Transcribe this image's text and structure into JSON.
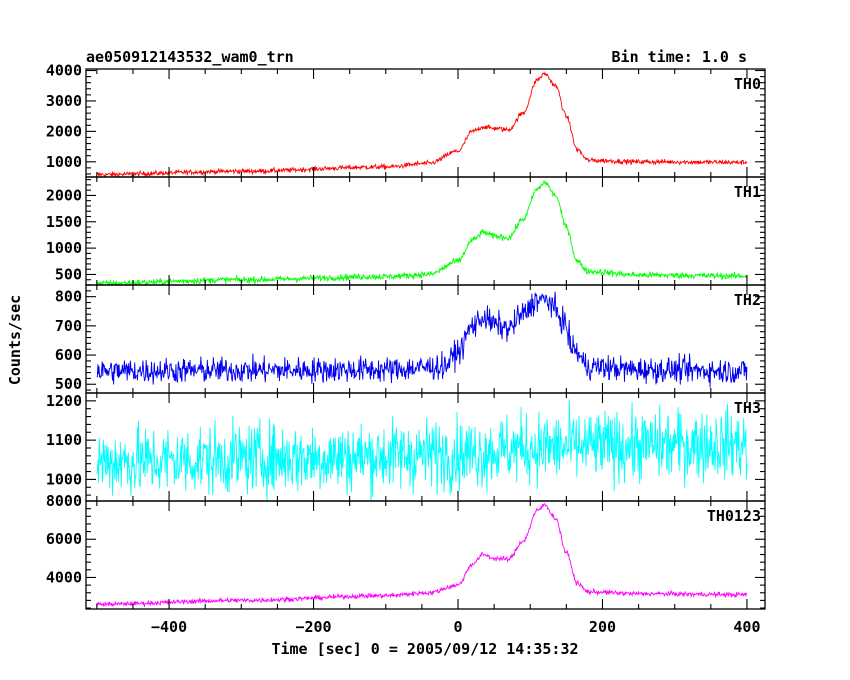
{
  "header": {
    "title": "ae050912143532_wam0_trn",
    "bin_time": "Bin time: 1.0 s"
  },
  "chart_data": {
    "type": "line",
    "xlabel": "Time [sec] 0 = 2005/09/12 14:35:32",
    "ylabel": "Counts/sec",
    "xlim": [
      -515,
      425
    ],
    "x_ticks": [
      -400,
      -200,
      0,
      200,
      400
    ],
    "x_tick_labels": [
      "−400",
      "−200",
      "0",
      "200",
      "400"
    ],
    "x_range": [
      -500,
      400
    ],
    "panels": [
      {
        "name": "TH0",
        "color": "#ff0000",
        "ylim": [
          500,
          4050
        ],
        "y_ticks": [
          1000,
          2000,
          3000,
          4000
        ],
        "noise": 40,
        "points": [
          [
            -500,
            580
          ],
          [
            -300,
            690
          ],
          [
            -100,
            830
          ],
          [
            -40,
            950
          ],
          [
            0,
            1350
          ],
          [
            20,
            2000
          ],
          [
            35,
            2150
          ],
          [
            50,
            2100
          ],
          [
            70,
            2050
          ],
          [
            90,
            2600
          ],
          [
            110,
            3700
          ],
          [
            120,
            3900
          ],
          [
            135,
            3500
          ],
          [
            150,
            2500
          ],
          [
            165,
            1400
          ],
          [
            180,
            1050
          ],
          [
            250,
            1000
          ],
          [
            400,
            980
          ]
        ]
      },
      {
        "name": "TH1",
        "color": "#00ff00",
        "ylim": [
          300,
          2350
        ],
        "y_ticks": [
          500,
          1000,
          1500,
          2000
        ],
        "noise": 30,
        "points": [
          [
            -500,
            330
          ],
          [
            -300,
            400
          ],
          [
            -100,
            460
          ],
          [
            -40,
            500
          ],
          [
            0,
            750
          ],
          [
            20,
            1150
          ],
          [
            35,
            1300
          ],
          [
            50,
            1230
          ],
          [
            70,
            1200
          ],
          [
            90,
            1550
          ],
          [
            110,
            2120
          ],
          [
            120,
            2250
          ],
          [
            135,
            2000
          ],
          [
            150,
            1400
          ],
          [
            165,
            750
          ],
          [
            180,
            560
          ],
          [
            250,
            490
          ],
          [
            400,
            470
          ]
        ]
      },
      {
        "name": "TH2",
        "color": "#0000ee",
        "ylim": [
          470,
          840
        ],
        "y_ticks": [
          500,
          600,
          700,
          800
        ],
        "noise": 22,
        "points": [
          [
            -500,
            545
          ],
          [
            -300,
            548
          ],
          [
            -100,
            550
          ],
          [
            -20,
            560
          ],
          [
            0,
            610
          ],
          [
            20,
            700
          ],
          [
            35,
            730
          ],
          [
            50,
            705
          ],
          [
            70,
            690
          ],
          [
            90,
            740
          ],
          [
            110,
            790
          ],
          [
            125,
            785
          ],
          [
            145,
            720
          ],
          [
            160,
            620
          ],
          [
            180,
            560
          ],
          [
            250,
            550
          ],
          [
            400,
            545
          ]
        ]
      },
      {
        "name": "TH3",
        "color": "#00ffff",
        "ylim": [
          945,
          1220
        ],
        "y_ticks": [
          1000,
          1100,
          1200
        ],
        "noise": 45,
        "points": [
          [
            -500,
            1045
          ],
          [
            -200,
            1055
          ],
          [
            0,
            1065
          ],
          [
            100,
            1080
          ],
          [
            200,
            1085
          ],
          [
            400,
            1090
          ]
        ]
      },
      {
        "name": "TH0123",
        "color": "#ff00ff",
        "ylim": [
          2350,
          8000
        ],
        "y_ticks": [
          4000,
          6000,
          8000
        ],
        "noise": 60,
        "points": [
          [
            -500,
            2600
          ],
          [
            -300,
            2800
          ],
          [
            -100,
            3050
          ],
          [
            -40,
            3200
          ],
          [
            0,
            3600
          ],
          [
            20,
            4700
          ],
          [
            35,
            5200
          ],
          [
            50,
            5000
          ],
          [
            70,
            4950
          ],
          [
            90,
            5900
          ],
          [
            110,
            7500
          ],
          [
            120,
            7800
          ],
          [
            135,
            7100
          ],
          [
            150,
            5300
          ],
          [
            165,
            3700
          ],
          [
            180,
            3250
          ],
          [
            250,
            3150
          ],
          [
            400,
            3100
          ]
        ]
      }
    ]
  }
}
